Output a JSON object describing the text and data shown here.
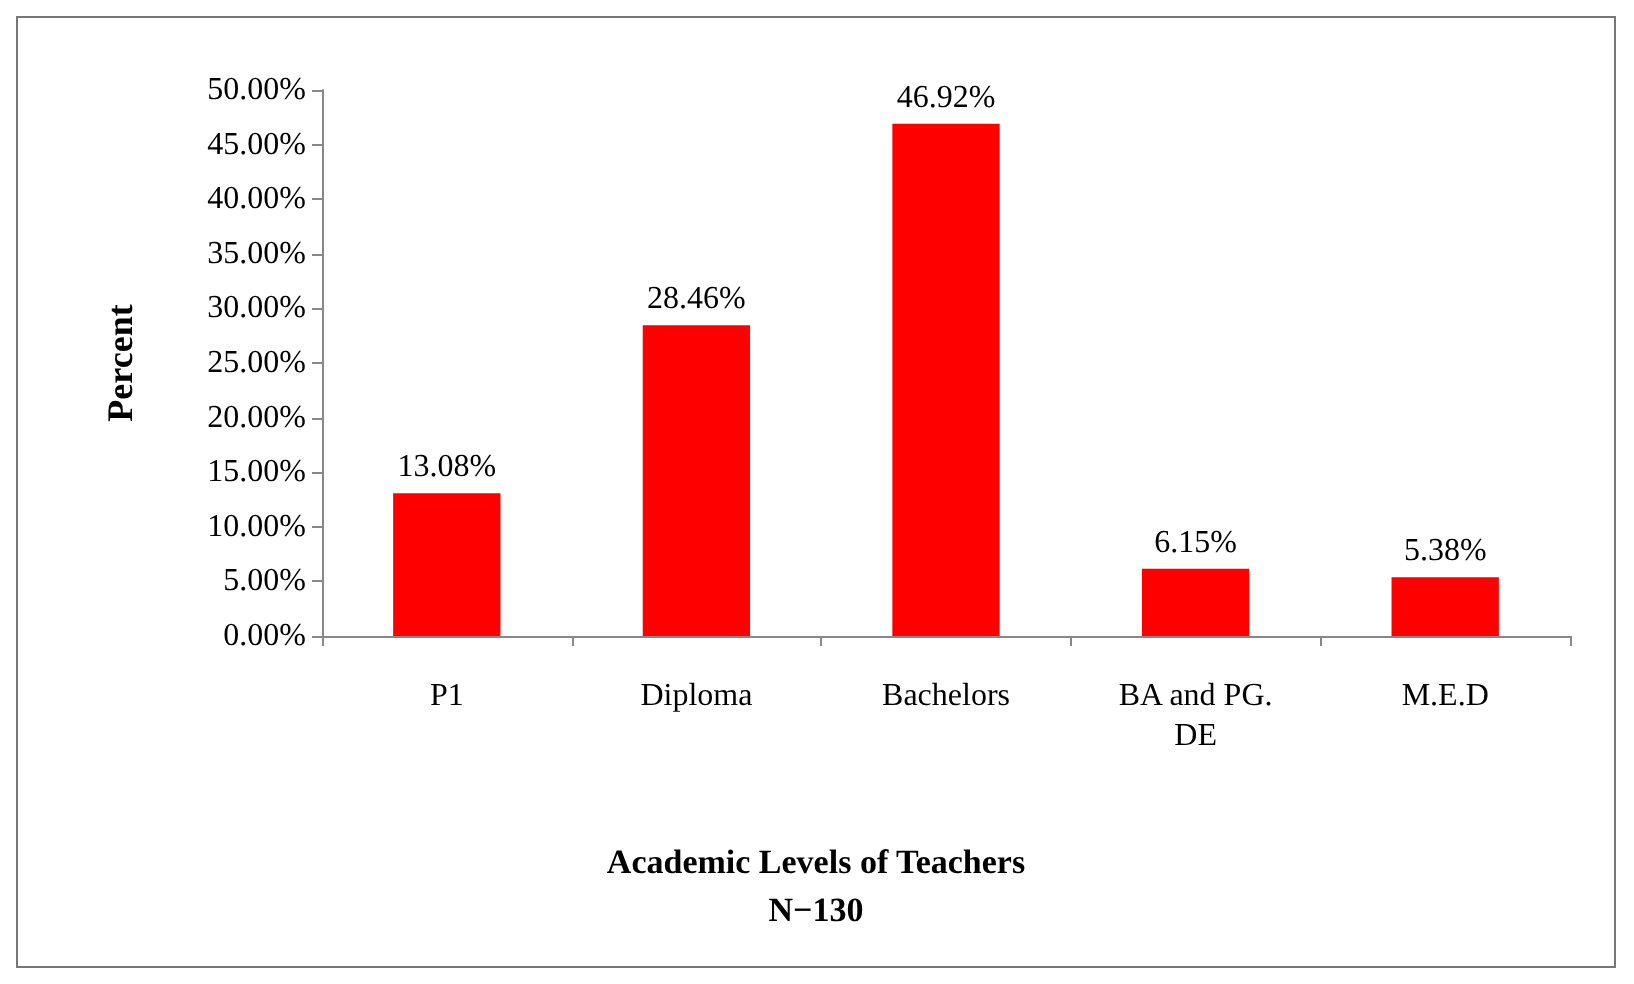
{
  "chart_data": {
    "type": "bar",
    "xlabel": "Academic Levels of Teachers\nN−130",
    "ylabel": "Percent",
    "categories": [
      "P1",
      "Diploma",
      "Bachelors",
      "BA and PG.\nDE",
      "M.E.D"
    ],
    "values": [
      13.08,
      28.46,
      46.92,
      6.15,
      5.38
    ],
    "value_labels": [
      "13.08%",
      "28.46%",
      "46.92%",
      "6.15%",
      "5.38%"
    ],
    "color": "#ff0000",
    "ylim": [
      0,
      50
    ],
    "yticks": [
      {
        "value": 0,
        "label": "0.00%"
      },
      {
        "value": 5,
        "label": "5.00%"
      },
      {
        "value": 10,
        "label": "10.00%"
      },
      {
        "value": 15,
        "label": "15.00%"
      },
      {
        "value": 20,
        "label": "20.00%"
      },
      {
        "value": 25,
        "label": "25.00%"
      },
      {
        "value": 30,
        "label": "30.00%"
      },
      {
        "value": 35,
        "label": "35.00%"
      },
      {
        "value": 40,
        "label": "40.00%"
      },
      {
        "value": 45,
        "label": "45.00%"
      },
      {
        "value": 50,
        "label": "50.00%"
      }
    ]
  }
}
